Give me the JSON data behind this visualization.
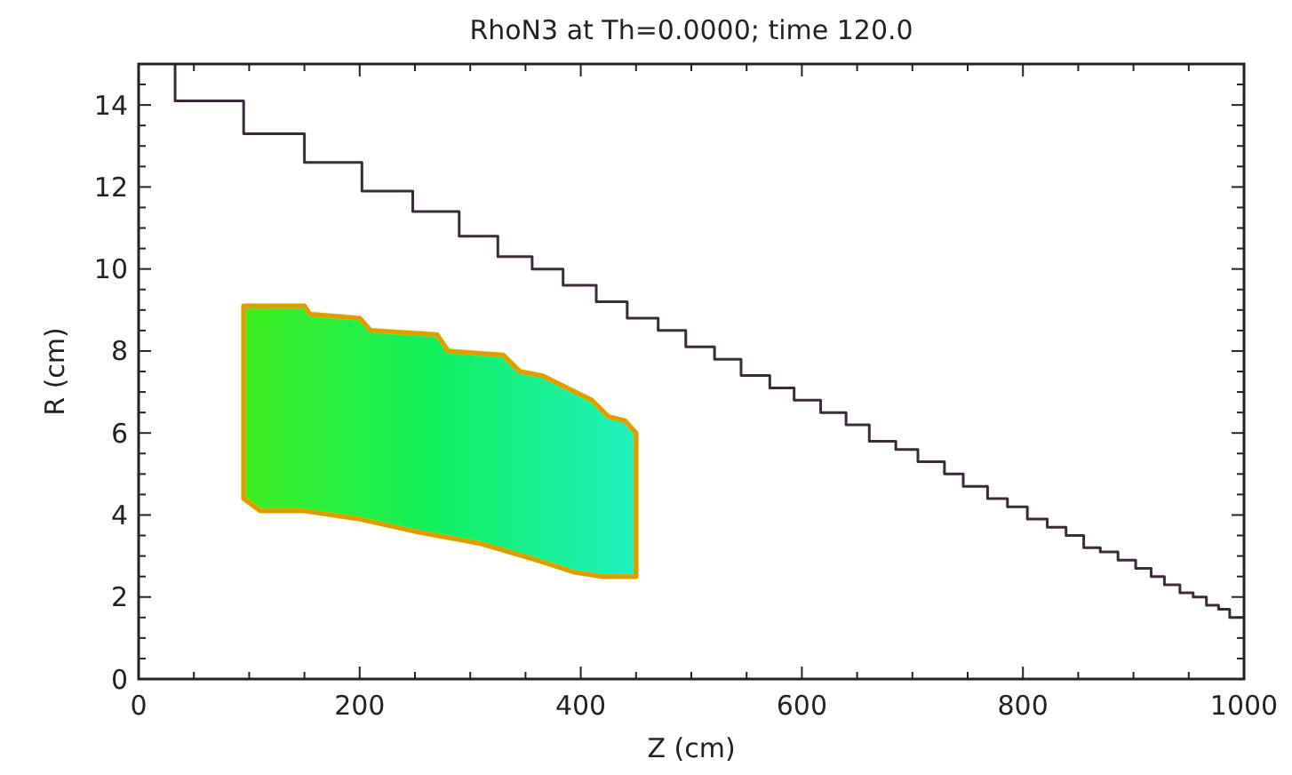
{
  "chart_data": {
    "type": "step",
    "title": "RhoN3 at Th=0.0000; time 120.0",
    "xlabel": "Z (cm)",
    "ylabel": "R (cm)",
    "xlim": [
      0,
      1000
    ],
    "ylim": [
      0,
      15
    ],
    "xticks": [
      0,
      {
        "value": 50,
        "label": null
      },
      {
        "value": 100,
        "label": null
      },
      {
        "value": 150,
        "label": null
      },
      200,
      {
        "value": 250,
        "label": null
      },
      {
        "value": 300,
        "label": null
      },
      {
        "value": 350,
        "label": null
      },
      400,
      {
        "value": 450,
        "label": null
      },
      {
        "value": 500,
        "label": null
      },
      {
        "value": 550,
        "label": null
      },
      600,
      {
        "value": 650,
        "label": null
      },
      {
        "value": 700,
        "label": null
      },
      {
        "value": 750,
        "label": null
      },
      800,
      {
        "value": 850,
        "label": null
      },
      {
        "value": 900,
        "label": null
      },
      {
        "value": 950,
        "label": null
      },
      1000
    ],
    "yticks": [
      0,
      {
        "value": 0.5,
        "label": null
      },
      {
        "value": 1,
        "label": null
      },
      {
        "value": 1.5,
        "label": null
      },
      2,
      {
        "value": 2.5,
        "label": null
      },
      {
        "value": 3,
        "label": null
      },
      {
        "value": 3.5,
        "label": null
      },
      4,
      {
        "value": 4.5,
        "label": null
      },
      {
        "value": 5,
        "label": null
      },
      {
        "value": 5.5,
        "label": null
      },
      6,
      {
        "value": 6.5,
        "label": null
      },
      {
        "value": 7,
        "label": null
      },
      {
        "value": 7.5,
        "label": null
      },
      8,
      {
        "value": 8.5,
        "label": null
      },
      {
        "value": 9,
        "label": null
      },
      {
        "value": 9.5,
        "label": null
      },
      10,
      {
        "value": 10.5,
        "label": null
      },
      {
        "value": 11,
        "label": null
      },
      {
        "value": 11.5,
        "label": null
      },
      12,
      {
        "value": 12.5,
        "label": null
      },
      {
        "value": 13,
        "label": null
      },
      {
        "value": 13.5,
        "label": null
      },
      14,
      {
        "value": 14.5,
        "label": null
      }
    ],
    "series": [
      {
        "color": "#3a2a3a",
        "x": [
          33,
          33,
          95,
          150,
          202,
          248,
          290,
          325,
          356,
          384,
          414,
          442,
          470,
          495,
          521,
          545,
          571,
          593,
          617,
          640,
          661,
          685,
          705,
          729,
          746,
          768,
          786,
          804,
          822,
          839,
          855,
          870,
          886,
          902,
          916,
          928,
          942,
          954,
          966,
          977,
          987,
          1000
        ],
        "values": [
          15,
          14.1,
          13.3,
          12.6,
          11.9,
          11.4,
          10.8,
          10.3,
          10.0,
          9.6,
          9.2,
          8.8,
          8.5,
          8.1,
          7.8,
          7.4,
          7.1,
          6.8,
          6.5,
          6.2,
          5.8,
          5.6,
          5.3,
          5.0,
          4.7,
          4.4,
          4.2,
          3.9,
          3.7,
          3.5,
          3.2,
          3.1,
          2.9,
          2.7,
          2.5,
          2.3,
          2.1,
          2.0,
          1.8,
          1.7,
          1.5,
          1.5
        ]
      }
    ]
  }
}
